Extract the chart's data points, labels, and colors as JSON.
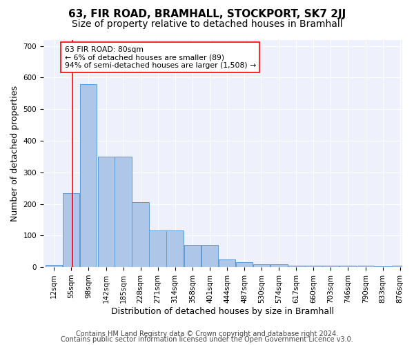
{
  "title": "63, FIR ROAD, BRAMHALL, STOCKPORT, SK7 2JJ",
  "subtitle": "Size of property relative to detached houses in Bramhall",
  "xlabel": "Distribution of detached houses by size in Bramhall",
  "ylabel": "Number of detached properties",
  "footnote1": "Contains HM Land Registry data © Crown copyright and database right 2024.",
  "footnote2": "Contains public sector information licensed under the Open Government Licence v3.0.",
  "annotation_line1": "63 FIR ROAD: 80sqm",
  "annotation_line2": "← 6% of detached houses are smaller (89)",
  "annotation_line3": "94% of semi-detached houses are larger (1,508) →",
  "bar_color": "#aec6e8",
  "bar_edge_color": "#5b9bd5",
  "property_line_x": 80,
  "property_line_color": "red",
  "categories": [
    "12sqm",
    "55sqm",
    "98sqm",
    "142sqm",
    "185sqm",
    "228sqm",
    "271sqm",
    "314sqm",
    "358sqm",
    "401sqm",
    "444sqm",
    "487sqm",
    "530sqm",
    "574sqm",
    "617sqm",
    "660sqm",
    "703sqm",
    "746sqm",
    "790sqm",
    "833sqm",
    "876sqm"
  ],
  "bin_edges": [
    12,
    55,
    98,
    142,
    185,
    228,
    271,
    314,
    358,
    401,
    444,
    487,
    530,
    574,
    617,
    660,
    703,
    746,
    790,
    833,
    876
  ],
  "bar_heights": [
    7,
    233,
    580,
    350,
    350,
    205,
    115,
    115,
    70,
    70,
    25,
    15,
    10,
    10,
    5,
    5,
    5,
    5,
    5,
    3,
    5
  ],
  "ylim": [
    0,
    720
  ],
  "yticks": [
    0,
    100,
    200,
    300,
    400,
    500,
    600,
    700
  ],
  "background_color": "#eef1fb",
  "grid_color": "#ffffff",
  "title_fontsize": 11,
  "subtitle_fontsize": 10,
  "axis_label_fontsize": 9,
  "tick_fontsize": 7.5,
  "footnote_fontsize": 7
}
